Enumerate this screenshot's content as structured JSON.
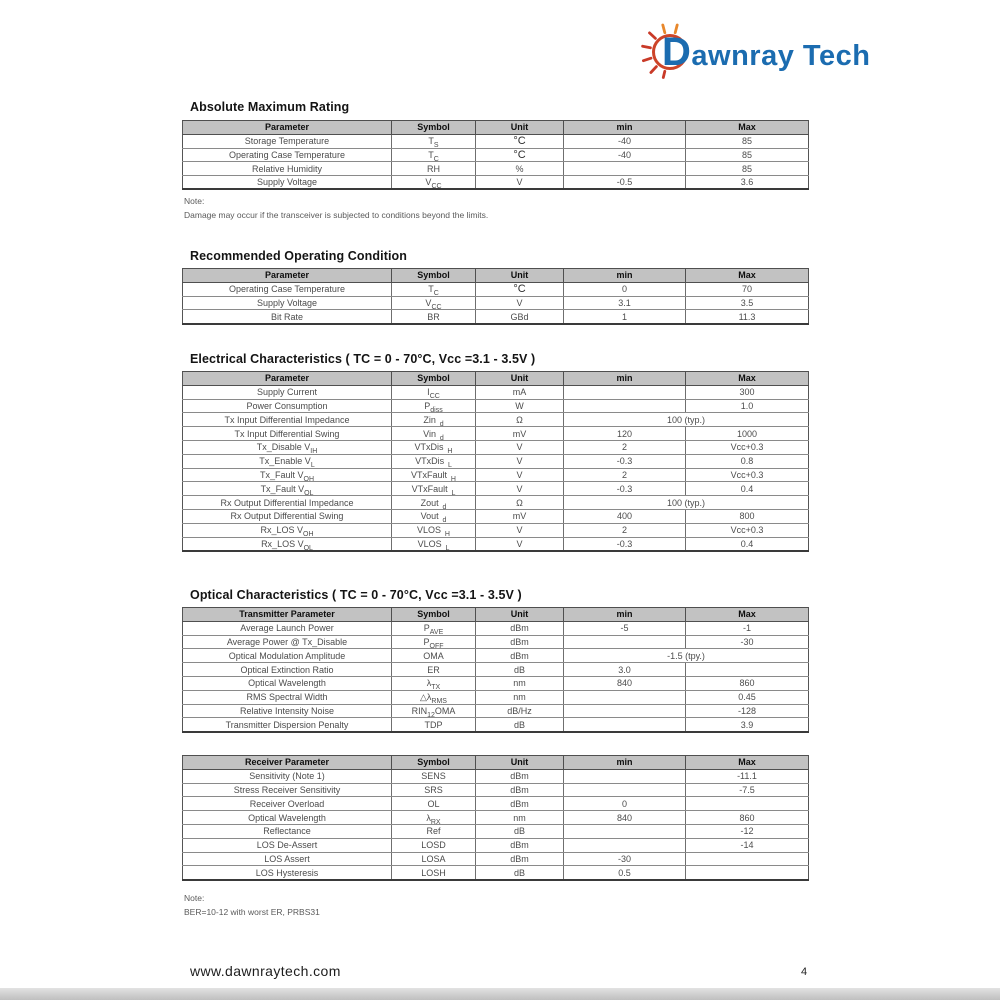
{
  "logo": {
    "first_letter": "D",
    "rest": "awnray Tech",
    "brand_color": "#1b6cb0",
    "sun_color": "#cd4428",
    "ray_accent_color": "#e8872b"
  },
  "sections": [
    {
      "title": "Absolute Maximum Rating"
    },
    {
      "title": "Recommended Operating Condition"
    },
    {
      "title": "Electrical Characteristics ( TC = 0 - 70°C, Vcc =3.1 - 3.5V )"
    },
    {
      "title": "Optical Characteristics ( TC = 0 - 70°C, Vcc =3.1 - 3.5V )"
    }
  ],
  "notes": {
    "note1_label": "Note:",
    "note1_text": "Damage may occur if the transceiver is subjected to conditions beyond the limits.",
    "note2_label": "Note:",
    "note2_text": "BER=10-12 with worst ER, PRBS31"
  },
  "tables": [
    {
      "name": "absolute-maximum-rating",
      "headers": [
        "Parameter",
        "Symbol",
        "Unit",
        "min",
        "Max"
      ],
      "rows": [
        [
          "Storage Temperature",
          "T_{S}",
          "°C",
          "-40",
          "85"
        ],
        [
          "Operating Case Temperature",
          "T_{C}",
          "°C",
          "-40",
          "85"
        ],
        [
          "Relative Humidity",
          "RH",
          "%",
          "",
          "85"
        ],
        [
          "Supply Voltage",
          "V_{CC}",
          "V",
          "-0.5",
          "3.6"
        ]
      ]
    },
    {
      "name": "recommended-operating-condition",
      "headers": [
        "Parameter",
        "Symbol",
        "Unit",
        "min",
        "Max"
      ],
      "rows": [
        [
          "Operating Case Temperature",
          "T_{C}",
          "°C",
          "0",
          "70"
        ],
        [
          "Supply Voltage",
          "V_{CC}",
          "V",
          "3.1",
          "3.5"
        ],
        [
          "Bit Rate",
          "BR",
          "GBd",
          "1",
          "11.3"
        ]
      ]
    },
    {
      "name": "electrical-characteristics",
      "headers": [
        "Parameter",
        "Symbol",
        "Unit",
        "min",
        "Max"
      ],
      "rows": [
        [
          "Supply Current",
          "I_{CC}",
          "mA",
          "",
          "300"
        ],
        [
          "Power Consumption",
          "P_{diss}",
          "W",
          "",
          "1.0"
        ],
        [
          "Tx Input Differential Impedance",
          "Zin_{_d}",
          "Ω",
          {
            "t": "100 (typ.)",
            "span": 2
          }
        ],
        [
          "Tx Input Differential Swing",
          "Vin_{_d}",
          "mV",
          "120",
          "1000"
        ],
        [
          "Tx_Disable V_{IH}",
          "VTxDis_{_H}",
          "V",
          "2",
          "Vcc+0.3"
        ],
        [
          "Tx_Enable V_{L}",
          "VTxDis_{_L}",
          "V",
          "-0.3",
          "0.8"
        ],
        [
          "Tx_Fault V_{OH}",
          "VTxFault_{_H}",
          "V",
          "2",
          "Vcc+0.3"
        ],
        [
          "Tx_Fault V_{OL}",
          "VTxFault_{_L}",
          "V",
          "-0.3",
          "0.4"
        ],
        [
          "Rx Output Differential Impedance",
          "Zout_{_d}",
          "Ω",
          {
            "t": "100 (typ.)",
            "span": 2
          }
        ],
        [
          "Rx Output Differential Swing",
          "Vout_{_d}",
          "mV",
          "400",
          "800"
        ],
        [
          "Rx_LOS V_{OH}",
          "VLOS_{_H}",
          "V",
          "2",
          "Vcc+0.3"
        ],
        [
          "Rx_LOS V_{OL}",
          "VLOS_{_L}",
          "V",
          "-0.3",
          "0.4"
        ]
      ]
    },
    {
      "name": "optical-transmitter",
      "headers": [
        "Transmitter Parameter",
        "Symbol",
        "Unit",
        "min",
        "Max"
      ],
      "rows": [
        [
          "Average Launch Power",
          "P_{AVE}",
          "dBm",
          "-5",
          "-1"
        ],
        [
          "Average Power @ Tx_Disable",
          "P_{OFF}",
          "dBm",
          "",
          "-30"
        ],
        [
          "Optical Modulation Amplitude",
          "OMA",
          "dBm",
          {
            "t": "-1.5 (tpy.)",
            "span": 2
          }
        ],
        [
          "Optical Extinction Ratio",
          "ER",
          "dB",
          "3.0",
          ""
        ],
        [
          "Optical Wavelength",
          "λ_{TX}",
          "nm",
          "840",
          "860"
        ],
        [
          "RMS Spectral Width",
          "△λ_{RMS}",
          "nm",
          "",
          "0.45"
        ],
        [
          "Relative Intensity Noise",
          "RIN_{12}OMA",
          "dB/Hz",
          "",
          "-128"
        ],
        [
          "Transmitter Dispersion Penalty",
          "TDP",
          "dB",
          "",
          "3.9"
        ]
      ]
    },
    {
      "name": "optical-receiver",
      "headers": [
        "Receiver Parameter",
        "Symbol",
        "Unit",
        "min",
        "Max"
      ],
      "rows": [
        [
          "Sensitivity (Note 1)",
          "SENS",
          "dBm",
          "",
          "-11.1"
        ],
        [
          "Stress Receiver Sensitivity",
          "SRS",
          "dBm",
          "",
          "-7.5"
        ],
        [
          "Receiver Overload",
          "OL",
          "dBm",
          "0",
          ""
        ],
        [
          "Optical Wavelength",
          "λ_{RX}",
          "nm",
          "840",
          "860"
        ],
        [
          "Reflectance",
          "Ref",
          "dB",
          "",
          "-12"
        ],
        [
          "LOS De-Assert",
          "LOSD",
          "dBm",
          "",
          "-14"
        ],
        [
          "LOS Assert",
          "LOSA",
          "dBm",
          "-30",
          ""
        ],
        [
          "LOS Hysteresis",
          "LOSH",
          "dB",
          "0.5",
          ""
        ]
      ]
    }
  ],
  "footer": {
    "url": "www.dawnraytech.com",
    "page_number": "4"
  }
}
